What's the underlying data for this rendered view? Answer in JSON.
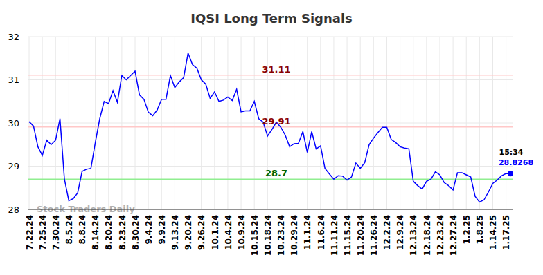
{
  "chart_data": {
    "type": "line",
    "title": "IQSI Long Term Signals",
    "categories": [
      "7.22.24",
      null,
      null,
      "7.25.24",
      null,
      null,
      "7.30.24",
      null,
      null,
      "8.5.24",
      null,
      null,
      "8.8.24",
      null,
      null,
      "8.14.24",
      null,
      null,
      "8.20.24",
      null,
      null,
      "8.23.24",
      null,
      null,
      "8.30.24",
      null,
      null,
      "9.4.24",
      null,
      null,
      "9.9.24",
      null,
      null,
      "9.13.24",
      null,
      null,
      "9.20.24",
      null,
      null,
      "9.26.24",
      null,
      null,
      "10.1.24",
      null,
      null,
      "10.4.24",
      null,
      null,
      "10.9.24",
      null,
      null,
      "10.15.24",
      null,
      null,
      "10.18.24",
      null,
      null,
      "10.23.24",
      null,
      null,
      "10.29.24",
      null,
      null,
      "11.1.24",
      null,
      null,
      "11.6.24",
      null,
      null,
      "11.11.24",
      null,
      null,
      "11.15.24",
      null,
      null,
      "11.20.24",
      null,
      null,
      "11.26.24",
      null,
      null,
      "12.2.24",
      null,
      null,
      "12.9.24",
      null,
      null,
      "12.13.24",
      null,
      null,
      "12.18.24",
      null,
      null,
      "12.23.24",
      null,
      null,
      "12.27.24",
      null,
      null,
      "1.2.25",
      null,
      null,
      "1.8.25",
      null,
      null,
      "1.14.25",
      null,
      null,
      "1.17.25",
      null
    ],
    "values": [
      30.03,
      29.93,
      29.45,
      29.25,
      29.6,
      29.5,
      29.6,
      30.1,
      28.7,
      28.2,
      28.25,
      28.38,
      28.88,
      28.93,
      28.95,
      29.55,
      30.1,
      30.5,
      30.45,
      30.75,
      30.48,
      31.1,
      31.0,
      31.1,
      31.2,
      30.65,
      30.55,
      30.25,
      30.17,
      30.3,
      30.55,
      30.55,
      31.1,
      30.82,
      30.95,
      31.05,
      31.62,
      31.35,
      31.27,
      31.0,
      30.9,
      30.57,
      30.72,
      30.5,
      30.53,
      30.6,
      30.52,
      30.78,
      30.26,
      30.28,
      30.28,
      30.5,
      30.1,
      30.02,
      29.7,
      29.85,
      30.02,
      29.9,
      29.72,
      29.45,
      29.52,
      29.53,
      29.8,
      29.32,
      29.8,
      29.4,
      29.47,
      28.95,
      28.82,
      28.7,
      28.78,
      28.77,
      28.68,
      28.75,
      29.07,
      28.95,
      29.08,
      29.5,
      29.65,
      29.78,
      29.9,
      29.9,
      29.62,
      29.55,
      29.45,
      29.42,
      29.4,
      28.65,
      28.55,
      28.47,
      28.65,
      28.7,
      28.87,
      28.8,
      28.62,
      28.55,
      28.45,
      28.85,
      28.85,
      28.8,
      28.75,
      28.3,
      28.17,
      28.22,
      28.4,
      28.6,
      28.68,
      28.78,
      28.83,
      28.8268
    ],
    "color": "#0000ff",
    "ylim": [
      28,
      32
    ],
    "yticks": [
      28,
      29,
      30,
      31,
      32
    ],
    "grid": true,
    "hlines": [
      {
        "value": 31.11,
        "label": "31.11",
        "color": "#ffc8c8",
        "label_color": "#8b0000"
      },
      {
        "value": 29.91,
        "label": "29.91",
        "color": "#ffc8c8",
        "label_color": "#8b0000"
      },
      {
        "value": 28.7,
        "label": "28.7",
        "color": "#90ee90",
        "label_color": "#006400"
      }
    ],
    "last_time": "15:34",
    "last_label": "28.8268",
    "watermark": "Stock Traders Daily"
  }
}
